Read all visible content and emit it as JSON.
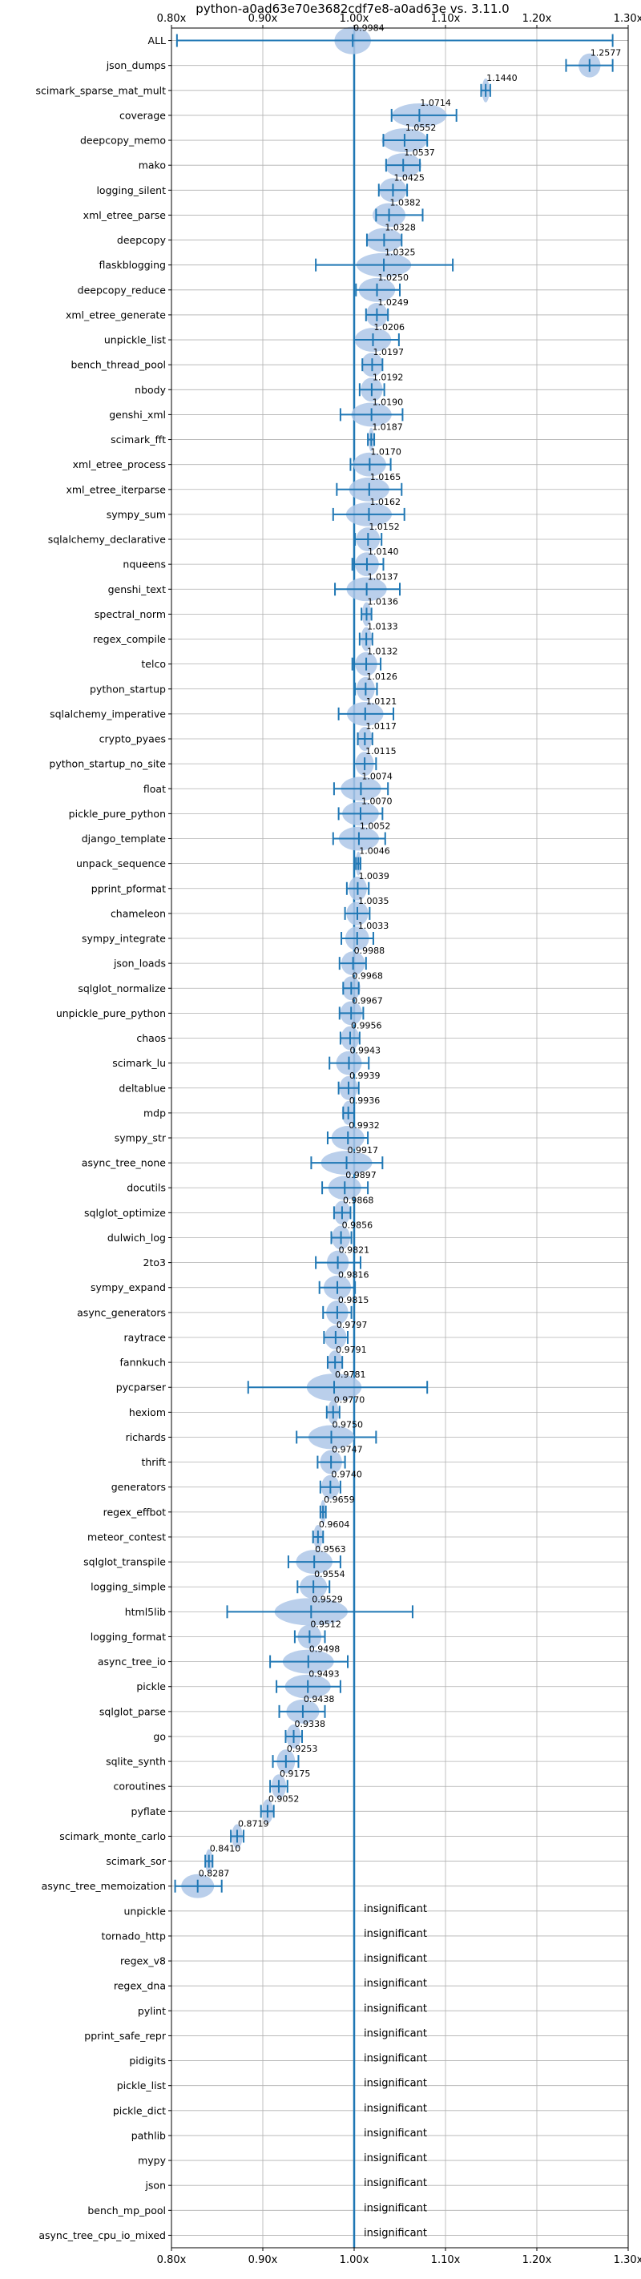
{
  "chart_data": {
    "type": "violin",
    "title": "python-a0ad63e70e3682cdf7e8-a0ad63e vs. 3.11.0",
    "xlim": [
      0.8,
      1.3
    ],
    "xticks": [
      0.8,
      0.9,
      1.0,
      1.1,
      1.2,
      1.3
    ],
    "xtick_labels": [
      "0.80x",
      "0.90x",
      "1.00x",
      "1.10x",
      "1.20x",
      "1.30x"
    ],
    "reference_x": 1.0,
    "grid": true,
    "insignificant_label": "insignificant",
    "benchmarks": [
      {
        "name": "ALL",
        "mean": 0.9984,
        "label": "0.9984",
        "min": 0.806,
        "max": 1.283,
        "spread": 0.02,
        "wide": true
      },
      {
        "name": "json_dumps",
        "mean": 1.2577,
        "label": "1.2577",
        "min": 1.232,
        "max": 1.283,
        "spread": 0.012
      },
      {
        "name": "scimark_sparse_mat_mult",
        "mean": 1.144,
        "label": "1.1440",
        "min": 1.139,
        "max": 1.149,
        "spread": 0.004
      },
      {
        "name": "coverage",
        "mean": 1.0714,
        "label": "1.0714",
        "min": 1.041,
        "max": 1.112,
        "spread": 0.03
      },
      {
        "name": "deepcopy_memo",
        "mean": 1.0552,
        "label": "1.0552",
        "min": 1.032,
        "max": 1.08,
        "spread": 0.025
      },
      {
        "name": "mako",
        "mean": 1.0537,
        "label": "1.0537",
        "min": 1.035,
        "max": 1.072,
        "spread": 0.02
      },
      {
        "name": "logging_silent",
        "mean": 1.0425,
        "label": "1.0425",
        "min": 1.027,
        "max": 1.058,
        "spread": 0.015
      },
      {
        "name": "xml_etree_parse",
        "mean": 1.0382,
        "label": "1.0382",
        "min": 1.024,
        "max": 1.075,
        "spread": 0.018
      },
      {
        "name": "deepcopy",
        "mean": 1.0328,
        "label": "1.0328",
        "min": 1.014,
        "max": 1.052,
        "spread": 0.02
      },
      {
        "name": "flaskblogging",
        "mean": 1.0325,
        "label": "1.0325",
        "min": 0.958,
        "max": 1.108,
        "spread": 0.03
      },
      {
        "name": "deepcopy_reduce",
        "mean": 1.025,
        "label": "1.0250",
        "min": 1.002,
        "max": 1.05,
        "spread": 0.02
      },
      {
        "name": "xml_etree_generate",
        "mean": 1.0249,
        "label": "1.0249",
        "min": 1.013,
        "max": 1.037,
        "spread": 0.012
      },
      {
        "name": "unpickle_list",
        "mean": 1.0206,
        "label": "1.0206",
        "min": 1.0,
        "max": 1.049,
        "spread": 0.02
      },
      {
        "name": "bench_thread_pool",
        "mean": 1.0197,
        "label": "1.0197",
        "min": 1.009,
        "max": 1.031,
        "spread": 0.012
      },
      {
        "name": "nbody",
        "mean": 1.0192,
        "label": "1.0192",
        "min": 1.006,
        "max": 1.033,
        "spread": 0.012
      },
      {
        "name": "genshi_xml",
        "mean": 1.019,
        "label": "1.0190",
        "min": 0.985,
        "max": 1.053,
        "spread": 0.022
      },
      {
        "name": "scimark_fft",
        "mean": 1.0187,
        "label": "1.0187",
        "min": 1.015,
        "max": 1.022,
        "spread": 0.003
      },
      {
        "name": "xml_etree_process",
        "mean": 1.017,
        "label": "1.0170",
        "min": 0.996,
        "max": 1.04,
        "spread": 0.018
      },
      {
        "name": "xml_etree_iterparse",
        "mean": 1.0165,
        "label": "1.0165",
        "min": 0.981,
        "max": 1.052,
        "spread": 0.022
      },
      {
        "name": "sympy_sum",
        "mean": 1.0162,
        "label": "1.0162",
        "min": 0.977,
        "max": 1.055,
        "spread": 0.025
      },
      {
        "name": "sqlalchemy_declarative",
        "mean": 1.0152,
        "label": "1.0152",
        "min": 1.001,
        "max": 1.03,
        "spread": 0.013
      },
      {
        "name": "nqueens",
        "mean": 1.014,
        "label": "1.0140",
        "min": 0.998,
        "max": 1.032,
        "spread": 0.013
      },
      {
        "name": "genshi_text",
        "mean": 1.0137,
        "label": "1.0137",
        "min": 0.979,
        "max": 1.05,
        "spread": 0.022
      },
      {
        "name": "spectral_norm",
        "mean": 1.0136,
        "label": "1.0136",
        "min": 1.008,
        "max": 1.019,
        "spread": 0.005
      },
      {
        "name": "regex_compile",
        "mean": 1.0133,
        "label": "1.0133",
        "min": 1.006,
        "max": 1.02,
        "spread": 0.006
      },
      {
        "name": "telco",
        "mean": 1.0132,
        "label": "1.0132",
        "min": 0.998,
        "max": 1.029,
        "spread": 0.012
      },
      {
        "name": "python_startup",
        "mean": 1.0126,
        "label": "1.0126",
        "min": 1.001,
        "max": 1.025,
        "spread": 0.01
      },
      {
        "name": "sqlalchemy_imperative",
        "mean": 1.0121,
        "label": "1.0121",
        "min": 0.983,
        "max": 1.043,
        "spread": 0.02
      },
      {
        "name": "crypto_pyaes",
        "mean": 1.0117,
        "label": "1.0117",
        "min": 1.004,
        "max": 1.02,
        "spread": 0.008
      },
      {
        "name": "python_startup_no_site",
        "mean": 1.0115,
        "label": "1.0115",
        "min": 1.0,
        "max": 1.024,
        "spread": 0.01
      },
      {
        "name": "float",
        "mean": 1.0074,
        "label": "1.0074",
        "min": 0.978,
        "max": 1.037,
        "spread": 0.022
      },
      {
        "name": "pickle_pure_python",
        "mean": 1.007,
        "label": "1.0070",
        "min": 0.983,
        "max": 1.031,
        "spread": 0.02
      },
      {
        "name": "django_template",
        "mean": 1.0052,
        "label": "1.0052",
        "min": 0.977,
        "max": 1.034,
        "spread": 0.022
      },
      {
        "name": "unpack_sequence",
        "mean": 1.0046,
        "label": "1.0046",
        "min": 1.002,
        "max": 1.007,
        "spread": 0.003
      },
      {
        "name": "pprint_pformat",
        "mean": 1.0039,
        "label": "1.0039",
        "min": 0.992,
        "max": 1.016,
        "spread": 0.01
      },
      {
        "name": "chameleon",
        "mean": 1.0035,
        "label": "1.0035",
        "min": 0.99,
        "max": 1.017,
        "spread": 0.012
      },
      {
        "name": "sympy_integrate",
        "mean": 1.0033,
        "label": "1.0033",
        "min": 0.986,
        "max": 1.021,
        "spread": 0.013
      },
      {
        "name": "json_loads",
        "mean": 0.9988,
        "label": "0.9988",
        "min": 0.984,
        "max": 1.013,
        "spread": 0.013
      },
      {
        "name": "sqlglot_normalize",
        "mean": 0.9968,
        "label": "0.9968",
        "min": 0.988,
        "max": 1.005,
        "spread": 0.01
      },
      {
        "name": "unpickle_pure_python",
        "mean": 0.9967,
        "label": "0.9967",
        "min": 0.984,
        "max": 1.01,
        "spread": 0.012
      },
      {
        "name": "chaos",
        "mean": 0.9956,
        "label": "0.9956",
        "min": 0.985,
        "max": 1.006,
        "spread": 0.01
      },
      {
        "name": "scimark_lu",
        "mean": 0.9943,
        "label": "0.9943",
        "min": 0.973,
        "max": 1.016,
        "spread": 0.014
      },
      {
        "name": "deltablue",
        "mean": 0.9939,
        "label": "0.9939",
        "min": 0.983,
        "max": 1.005,
        "spread": 0.01
      },
      {
        "name": "mdp",
        "mean": 0.9936,
        "label": "0.9936",
        "min": 0.988,
        "max": 1.0,
        "spread": 0.007
      },
      {
        "name": "sympy_str",
        "mean": 0.9932,
        "label": "0.9932",
        "min": 0.971,
        "max": 1.015,
        "spread": 0.018
      },
      {
        "name": "async_tree_none",
        "mean": 0.9917,
        "label": "0.9917",
        "min": 0.953,
        "max": 1.031,
        "spread": 0.028
      },
      {
        "name": "docutils",
        "mean": 0.9897,
        "label": "0.9897",
        "min": 0.965,
        "max": 1.015,
        "spread": 0.018
      },
      {
        "name": "sqlglot_optimize",
        "mean": 0.9868,
        "label": "0.9868",
        "min": 0.978,
        "max": 0.996,
        "spread": 0.009
      },
      {
        "name": "dulwich_log",
        "mean": 0.9856,
        "label": "0.9856",
        "min": 0.975,
        "max": 0.997,
        "spread": 0.01
      },
      {
        "name": "2to3",
        "mean": 0.9821,
        "label": "0.9821",
        "min": 0.958,
        "max": 1.007,
        "spread": 0.012
      },
      {
        "name": "sympy_expand",
        "mean": 0.9816,
        "label": "0.9816",
        "min": 0.962,
        "max": 1.001,
        "spread": 0.015
      },
      {
        "name": "async_generators",
        "mean": 0.9815,
        "label": "0.9815",
        "min": 0.966,
        "max": 0.997,
        "spread": 0.012
      },
      {
        "name": "raytrace",
        "mean": 0.9797,
        "label": "0.9797",
        "min": 0.967,
        "max": 0.993,
        "spread": 0.012
      },
      {
        "name": "fannkuch",
        "mean": 0.9791,
        "label": "0.9791",
        "min": 0.971,
        "max": 0.987,
        "spread": 0.008
      },
      {
        "name": "pycparser",
        "mean": 0.9781,
        "label": "0.9781",
        "min": 0.884,
        "max": 1.08,
        "spread": 0.03,
        "wide": true
      },
      {
        "name": "hexiom",
        "mean": 0.977,
        "label": "0.9770",
        "min": 0.97,
        "max": 0.984,
        "spread": 0.006
      },
      {
        "name": "richards",
        "mean": 0.975,
        "label": "0.9750",
        "min": 0.937,
        "max": 1.024,
        "spread": 0.025
      },
      {
        "name": "thrift",
        "mean": 0.9747,
        "label": "0.9747",
        "min": 0.96,
        "max": 0.99,
        "spread": 0.012
      },
      {
        "name": "generators",
        "mean": 0.974,
        "label": "0.9740",
        "min": 0.963,
        "max": 0.985,
        "spread": 0.01
      },
      {
        "name": "regex_effbot",
        "mean": 0.9659,
        "label": "0.9659",
        "min": 0.963,
        "max": 0.969,
        "spread": 0.003
      },
      {
        "name": "meteor_contest",
        "mean": 0.9604,
        "label": "0.9604",
        "min": 0.955,
        "max": 0.966,
        "spread": 0.005
      },
      {
        "name": "sqlglot_transpile",
        "mean": 0.9563,
        "label": "0.9563",
        "min": 0.928,
        "max": 0.985,
        "spread": 0.02
      },
      {
        "name": "logging_simple",
        "mean": 0.9554,
        "label": "0.9554",
        "min": 0.938,
        "max": 0.973,
        "spread": 0.015
      },
      {
        "name": "html5lib",
        "mean": 0.9529,
        "label": "0.9529",
        "min": 0.861,
        "max": 1.064,
        "spread": 0.04,
        "wide": true
      },
      {
        "name": "logging_format",
        "mean": 0.9512,
        "label": "0.9512",
        "min": 0.935,
        "max": 0.968,
        "spread": 0.013
      },
      {
        "name": "async_tree_io",
        "mean": 0.9498,
        "label": "0.9498",
        "min": 0.908,
        "max": 0.993,
        "spread": 0.028
      },
      {
        "name": "pickle",
        "mean": 0.9493,
        "label": "0.9493",
        "min": 0.915,
        "max": 0.985,
        "spread": 0.025
      },
      {
        "name": "sqlglot_parse",
        "mean": 0.9438,
        "label": "0.9438",
        "min": 0.918,
        "max": 0.968,
        "spread": 0.018
      },
      {
        "name": "go",
        "mean": 0.9338,
        "label": "0.9338",
        "min": 0.925,
        "max": 0.943,
        "spread": 0.008
      },
      {
        "name": "sqlite_synth",
        "mean": 0.9253,
        "label": "0.9253",
        "min": 0.911,
        "max": 0.939,
        "spread": 0.01
      },
      {
        "name": "coroutines",
        "mean": 0.9175,
        "label": "0.9175",
        "min": 0.908,
        "max": 0.927,
        "spread": 0.008
      },
      {
        "name": "pyflate",
        "mean": 0.9052,
        "label": "0.9052",
        "min": 0.898,
        "max": 0.912,
        "spread": 0.006
      },
      {
        "name": "scimark_monte_carlo",
        "mean": 0.8719,
        "label": "0.8719",
        "min": 0.865,
        "max": 0.879,
        "spread": 0.006
      },
      {
        "name": "scimark_sor",
        "mean": 0.841,
        "label": "0.8410",
        "min": 0.837,
        "max": 0.845,
        "spread": 0.004
      },
      {
        "name": "async_tree_memoization",
        "mean": 0.8287,
        "label": "0.8287",
        "min": 0.804,
        "max": 0.855,
        "spread": 0.018
      },
      {
        "name": "unpickle",
        "insignificant": true
      },
      {
        "name": "tornado_http",
        "insignificant": true
      },
      {
        "name": "regex_v8",
        "insignificant": true
      },
      {
        "name": "regex_dna",
        "insignificant": true
      },
      {
        "name": "pylint",
        "insignificant": true
      },
      {
        "name": "pprint_safe_repr",
        "insignificant": true
      },
      {
        "name": "pidigits",
        "insignificant": true
      },
      {
        "name": "pickle_list",
        "insignificant": true
      },
      {
        "name": "pickle_dict",
        "insignificant": true
      },
      {
        "name": "pathlib",
        "insignificant": true
      },
      {
        "name": "mypy",
        "insignificant": true
      },
      {
        "name": "json",
        "insignificant": true
      },
      {
        "name": "bench_mp_pool",
        "insignificant": true
      },
      {
        "name": "async_tree_cpu_io_mixed",
        "insignificant": true
      }
    ]
  },
  "colors": {
    "primary": "#1f77b4",
    "violin_fill": "#aec7e8",
    "grid": "#b0b0b0",
    "axis": "#000000",
    "text": "#000000"
  }
}
